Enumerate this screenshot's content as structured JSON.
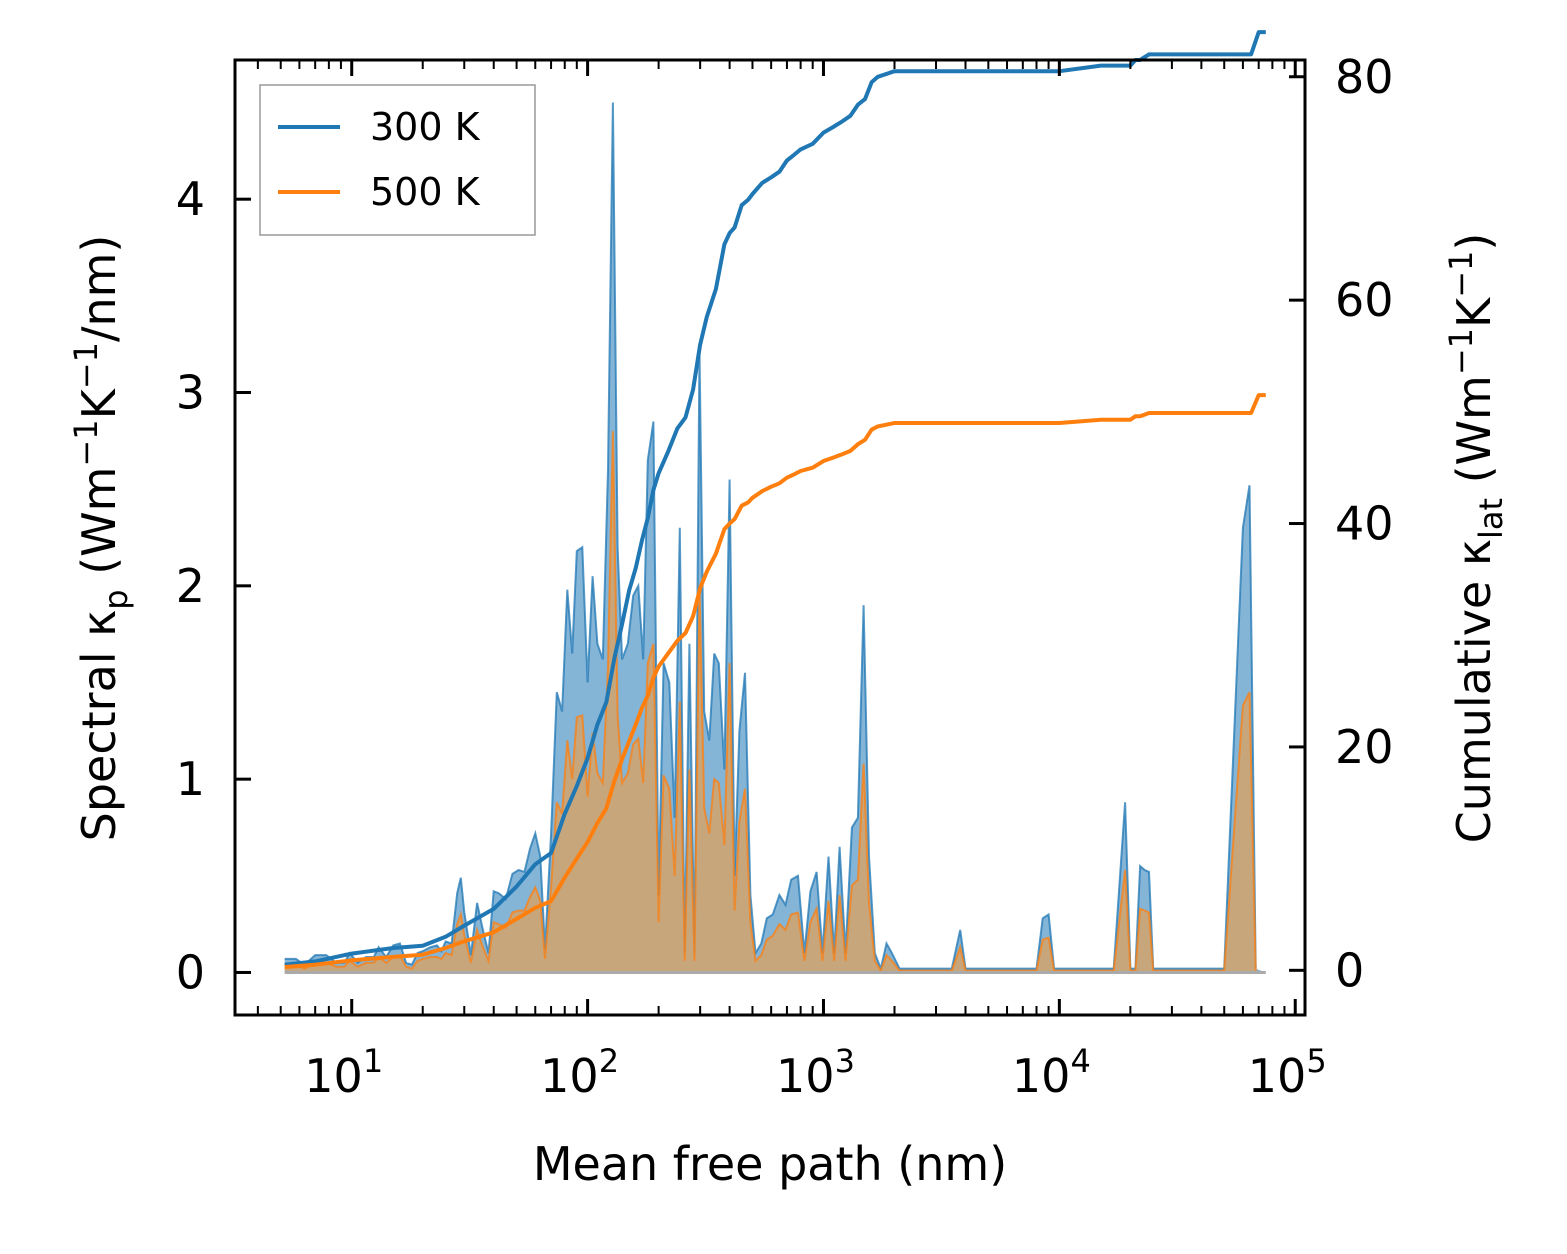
{
  "chart_data": {
    "type": "area",
    "xscale": "log",
    "xlabel": "Mean free path (nm)",
    "ylabel_left": {
      "main": "Spectral κ",
      "sub": "p",
      "units_pre": " (Wm",
      "units_sup1": "−1",
      "units_mid": "K",
      "units_sup2": "−1",
      "units_post": "/nm)"
    },
    "ylabel_right": {
      "main": "Cumulative κ",
      "sub": "lat",
      "units_pre": " (Wm",
      "units_sup1": "−1",
      "units_mid": "K",
      "units_sup2": "−1",
      "units_post": ")"
    },
    "xlim": [
      3.2,
      110000
    ],
    "ylim_left": [
      -0.22,
      4.72
    ],
    "ylim_right": [
      -4.0,
      81.5
    ],
    "x_ticks": [
      {
        "value": 10,
        "base": "10",
        "exp": "1"
      },
      {
        "value": 100,
        "base": "10",
        "exp": "2"
      },
      {
        "value": 1000,
        "base": "10",
        "exp": "3"
      },
      {
        "value": 10000,
        "base": "10",
        "exp": "4"
      },
      {
        "value": 100000,
        "base": "10",
        "exp": "5"
      }
    ],
    "y_ticks_left": [
      0,
      1,
      2,
      3,
      4
    ],
    "y_ticks_right": [
      0,
      20,
      40,
      60,
      80
    ],
    "legend": {
      "position": "top-left",
      "entries": [
        {
          "label": "300 K",
          "color": "#1f77b4"
        },
        {
          "label": "500 K",
          "color": "#ff7f0e"
        }
      ]
    },
    "spectral_x": [
      5.2,
      5.8,
      6.3,
      7,
      7.8,
      8.6,
      9.3,
      9.8,
      10.6,
      11.5,
      12.4,
      13,
      14,
      15,
      16,
      17,
      18,
      19,
      20,
      21.5,
      23,
      24,
      25,
      26.5,
      28,
      29,
      30,
      32,
      34,
      36,
      38,
      40,
      42,
      45,
      48,
      51,
      54,
      57,
      60,
      63,
      66,
      70,
      74,
      78,
      82,
      86,
      90,
      95,
      100,
      105,
      110,
      116,
      122,
      128,
      134,
      140,
      148,
      156,
      164,
      172,
      180,
      190,
      200,
      210,
      222,
      234,
      246,
      258,
      270,
      284,
      298,
      312,
      328,
      344,
      360,
      380,
      400,
      420,
      440,
      465,
      490,
      515,
      545,
      575,
      610,
      650,
      690,
      730,
      780,
      830,
      880,
      935,
      990,
      1050,
      1110,
      1170,
      1240,
      1320,
      1400,
      1480,
      1560,
      1650,
      1750,
      1850,
      1950,
      2100,
      2300,
      2600,
      3000,
      3500,
      3800,
      4000,
      4300,
      5000,
      6000,
      7000,
      8000,
      8500,
      9000,
      9500,
      10000,
      11000,
      13000,
      15000,
      17000,
      19000,
      20000,
      21000,
      22000,
      23000,
      24000,
      25000,
      26000,
      27000,
      30000,
      40000,
      50000,
      60000,
      64000,
      68000,
      70000,
      72000,
      75000
    ],
    "series": [
      {
        "name": "300 K",
        "color": "#1f77b4",
        "spectral": [
          0.07,
          0.07,
          0.04,
          0.09,
          0.09,
          0.05,
          0.05,
          0.1,
          0.05,
          0.08,
          0.08,
          0.13,
          0.08,
          0.14,
          0.15,
          0.05,
          0.04,
          0.1,
          0.11,
          0.13,
          0.14,
          0.11,
          0.16,
          0.15,
          0.41,
          0.49,
          0.31,
          0.09,
          0.36,
          0.22,
          0.1,
          0.42,
          0.41,
          0.38,
          0.51,
          0.53,
          0.52,
          0.64,
          0.72,
          0.6,
          0.12,
          0.72,
          1.45,
          1.35,
          1.98,
          1.65,
          2.18,
          2.2,
          1.5,
          2.05,
          1.7,
          1.62,
          2.6,
          4.5,
          2.2,
          1.62,
          1.7,
          1.95,
          2.0,
          1.62,
          2.65,
          2.85,
          0.4,
          1.6,
          1.5,
          0.8,
          2.3,
          0.1,
          1.7,
          0.1,
          3.22,
          1.35,
          1.2,
          1.65,
          1.6,
          1.05,
          2.55,
          0.5,
          1.25,
          1.55,
          0.4,
          0.1,
          0.15,
          0.28,
          0.3,
          0.4,
          0.35,
          0.48,
          0.5,
          0.1,
          0.42,
          0.52,
          0.1,
          0.6,
          0.1,
          0.65,
          0.1,
          0.75,
          0.8,
          1.9,
          0.6,
          0.1,
          0.02,
          0.15,
          0.1,
          0.02,
          0.02,
          0.02,
          0.02,
          0.02,
          0.22,
          0.02,
          0.02,
          0.02,
          0.02,
          0.02,
          0.02,
          0.28,
          0.3,
          0.02,
          0.02,
          0.02,
          0.02,
          0.02,
          0.02,
          0.88,
          0.02,
          0.02,
          0.55,
          0.53,
          0.52,
          0.02,
          0.02,
          0.02,
          0.02,
          0.02,
          0.02,
          2.3,
          2.52,
          0.02
        ],
        "cumulative_x": [
          5.2,
          7,
          10,
          15,
          20,
          25,
          30,
          40,
          50,
          60,
          70,
          80,
          90,
          100,
          110,
          120,
          130,
          140,
          150,
          160,
          170,
          180,
          190,
          200,
          220,
          240,
          260,
          280,
          300,
          320,
          350,
          380,
          400,
          420,
          450,
          480,
          500,
          550,
          600,
          650,
          700,
          750,
          800,
          900,
          1000,
          1100,
          1200,
          1300,
          1400,
          1500,
          1600,
          1700,
          2000,
          3000,
          4000,
          5000,
          6000,
          8000,
          9000,
          10000,
          15000,
          20000,
          21000,
          22000,
          24000,
          25000,
          30000,
          40000,
          50000,
          60000,
          65000,
          70000,
          75000
        ],
        "cumulative": [
          0.5,
          0.8,
          1.5,
          2,
          2.2,
          3,
          4,
          5.5,
          7.5,
          9.5,
          10.5,
          14,
          16.5,
          19,
          22,
          24,
          28,
          31,
          34,
          36,
          38.5,
          40.5,
          43,
          44.5,
          46.5,
          48.5,
          49.5,
          52,
          56,
          58.5,
          61,
          65,
          66,
          66.5,
          68.5,
          69,
          69.5,
          70.5,
          71,
          71.5,
          72.5,
          73,
          73.5,
          74,
          75,
          75.5,
          76,
          76.5,
          77.5,
          78,
          79.5,
          80,
          80.5,
          80.5,
          80.5,
          80.5,
          80.5,
          80.5,
          80.5,
          80.5,
          81,
          81,
          81.5,
          81.5,
          82,
          82,
          82,
          82,
          82,
          82,
          82,
          84,
          84
        ]
      },
      {
        "name": "500 K",
        "color": "#ff7f0e",
        "spectral": [
          0.04,
          0.04,
          0.02,
          0.05,
          0.05,
          0.03,
          0.03,
          0.06,
          0.03,
          0.05,
          0.05,
          0.08,
          0.05,
          0.08,
          0.09,
          0.03,
          0.02,
          0.06,
          0.07,
          0.08,
          0.08,
          0.07,
          0.1,
          0.09,
          0.25,
          0.3,
          0.19,
          0.05,
          0.22,
          0.13,
          0.06,
          0.26,
          0.25,
          0.23,
          0.31,
          0.32,
          0.32,
          0.39,
          0.44,
          0.37,
          0.07,
          0.44,
          0.88,
          0.82,
          1.2,
          1.0,
          1.32,
          1.33,
          0.91,
          1.24,
          1.03,
          0.98,
          1.58,
          2.8,
          1.33,
          0.98,
          1.03,
          1.18,
          1.21,
          0.98,
          1.6,
          1.7,
          0.26,
          1.02,
          0.95,
          0.5,
          1.4,
          0.06,
          1.05,
          0.06,
          2.0,
          0.85,
          0.72,
          1.0,
          0.98,
          0.66,
          1.6,
          0.32,
          0.78,
          0.95,
          0.26,
          0.06,
          0.09,
          0.17,
          0.19,
          0.25,
          0.22,
          0.3,
          0.31,
          0.06,
          0.26,
          0.33,
          0.06,
          0.37,
          0.06,
          0.4,
          0.06,
          0.45,
          0.48,
          1.08,
          0.36,
          0.06,
          0.01,
          0.09,
          0.06,
          0.01,
          0.01,
          0.01,
          0.01,
          0.01,
          0.13,
          0.01,
          0.01,
          0.01,
          0.01,
          0.01,
          0.01,
          0.17,
          0.18,
          0.01,
          0.01,
          0.01,
          0.01,
          0.01,
          0.01,
          0.53,
          0.01,
          0.01,
          0.33,
          0.32,
          0.31,
          0.01,
          0.01,
          0.01,
          0.01,
          0.01,
          0.01,
          1.38,
          1.45,
          0.01
        ],
        "cumulative_x": [
          5.2,
          7,
          10,
          15,
          20,
          25,
          30,
          40,
          50,
          60,
          70,
          80,
          90,
          100,
          110,
          120,
          130,
          140,
          150,
          160,
          170,
          180,
          190,
          200,
          220,
          240,
          260,
          280,
          300,
          320,
          350,
          380,
          400,
          420,
          450,
          480,
          500,
          550,
          600,
          650,
          700,
          750,
          800,
          900,
          1000,
          1100,
          1200,
          1300,
          1400,
          1500,
          1600,
          1700,
          2000,
          3000,
          4000,
          5000,
          6000,
          8000,
          9000,
          10000,
          15000,
          20000,
          21000,
          22000,
          24000,
          25000,
          30000,
          40000,
          50000,
          60000,
          65000,
          70000,
          75000
        ],
        "cumulative": [
          0.3,
          0.5,
          0.9,
          1.2,
          1.4,
          2,
          2.6,
          3.4,
          4.6,
          5.6,
          6.2,
          8.3,
          10,
          11.5,
          13.2,
          14.5,
          17,
          18.9,
          20.5,
          22,
          23.5,
          24.6,
          26.2,
          27.2,
          28.4,
          29.5,
          30.2,
          31.7,
          34.2,
          35.7,
          37.3,
          39.5,
          40,
          40.4,
          41.6,
          41.9,
          42.3,
          42.9,
          43.3,
          43.6,
          44.1,
          44.4,
          44.7,
          45,
          45.6,
          45.9,
          46.2,
          46.5,
          47.1,
          47.5,
          48.4,
          48.7,
          49,
          49,
          49,
          49,
          49,
          49,
          49,
          49,
          49.3,
          49.3,
          49.6,
          49.6,
          49.9,
          49.9,
          49.9,
          49.9,
          49.9,
          49.9,
          49.9,
          51.5,
          51.5
        ]
      }
    ]
  }
}
